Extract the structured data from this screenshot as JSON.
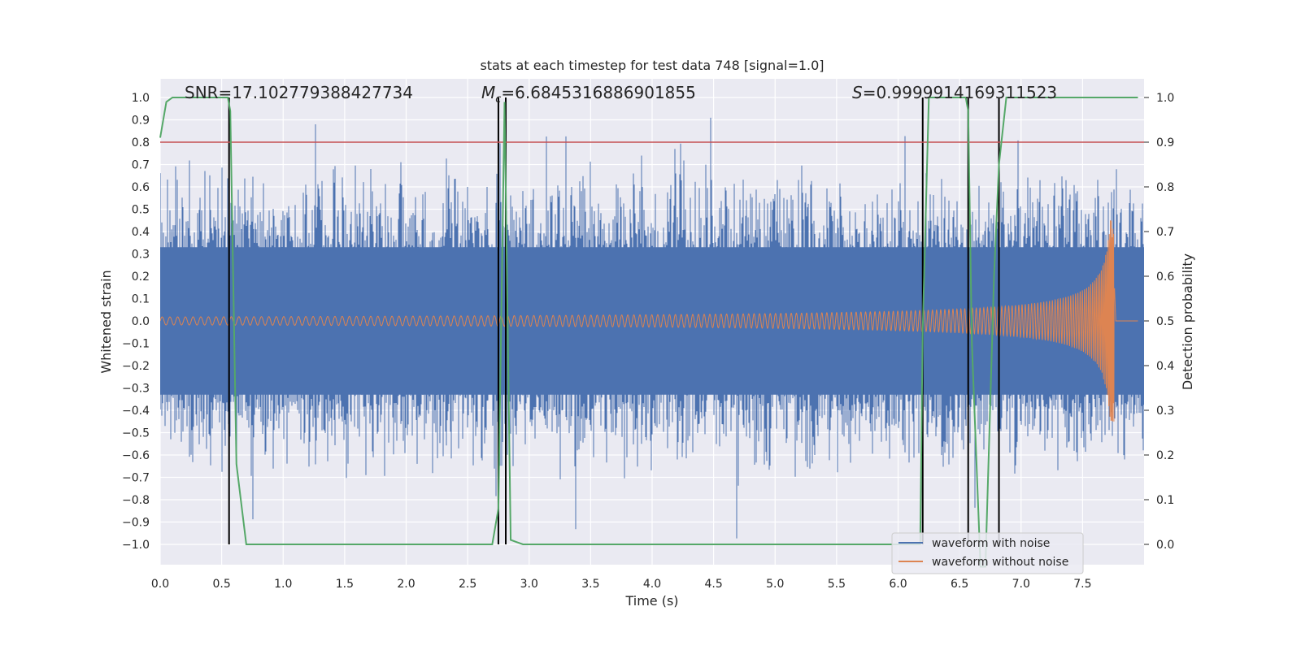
{
  "chart_data": {
    "type": "line",
    "title": "stats at each timestep for test data 748 [signal=1.0]",
    "xlabel": "Time (s)",
    "ylabel_left": "Whitened strain",
    "ylabel_right": "Detection probability",
    "xlim": [
      0.0,
      8.0
    ],
    "ylim_left": [
      -1.1,
      1.1
    ],
    "ylim_right": [
      -0.05,
      1.05
    ],
    "x_ticks": [
      "0.0",
      "0.5",
      "1.0",
      "1.5",
      "2.0",
      "2.5",
      "3.0",
      "3.5",
      "4.0",
      "4.5",
      "5.0",
      "5.5",
      "6.0",
      "6.5",
      "7.0",
      "7.5"
    ],
    "y_ticks_left": [
      "1.0",
      "0.9",
      "0.8",
      "0.7",
      "0.6",
      "0.5",
      "0.4",
      "0.3",
      "0.2",
      "0.1",
      "0.0",
      "−0.1",
      "−0.2",
      "−0.3",
      "−0.4",
      "−0.5",
      "−0.6",
      "−0.7",
      "−0.8",
      "−0.9",
      "−1.0"
    ],
    "y_ticks_right": [
      "1.0",
      "0.9",
      "0.8",
      "0.7",
      "0.6",
      "0.5",
      "0.4",
      "0.3",
      "0.2",
      "0.1",
      "0.0"
    ],
    "annotations": {
      "snr": "SNR=17.102779388427734",
      "mc_symbol": "M",
      "mc_subscript": "c",
      "mc_value": "=6.6845316886901855",
      "s_symbol": "S",
      "s_value": "=0.9999914169311523"
    },
    "threshold": {
      "value_right_axis": 0.9,
      "color": "#c44e52"
    },
    "vertical_markers": [
      0.56,
      2.75,
      2.81,
      6.2,
      6.57,
      6.82
    ],
    "series": [
      {
        "name": "waveform with noise",
        "color": "#4c72b0",
        "description": "noise envelope amplitude approx 0.3-0.4, peaks to 0.95"
      },
      {
        "name": "waveform without noise",
        "color": "#dd8452",
        "description": "chirp amplitude growing from 0.02 to 0.5 at t=7.75 s"
      },
      {
        "name": "detection probability",
        "color": "#55a868",
        "axis": "right",
        "x": [
          0.0,
          0.05,
          0.1,
          0.15,
          0.55,
          0.57,
          0.62,
          0.7,
          2.7,
          2.75,
          2.8,
          2.85,
          2.95,
          6.18,
          6.2,
          6.25,
          6.55,
          6.57,
          6.6,
          6.67,
          6.71,
          6.78,
          6.82,
          6.88,
          7.95
        ],
        "y": [
          0.91,
          0.99,
          1.0,
          1.0,
          1.0,
          0.97,
          0.18,
          0.0,
          0.0,
          0.08,
          0.99,
          0.01,
          0.0,
          0.0,
          0.48,
          1.0,
          1.0,
          0.97,
          0.45,
          -0.05,
          -0.05,
          0.6,
          0.85,
          1.0,
          1.0
        ]
      }
    ],
    "legend": {
      "placement": "lower-right",
      "entries": [
        "waveform with noise",
        "waveform without noise"
      ]
    },
    "colors": {
      "plot_background": "#eaeaf2",
      "grid": "#ffffff",
      "noise": "#4c72b0",
      "clean": "#dd8452",
      "probability": "#55a868",
      "marker": "#000000",
      "threshold": "#c44e52"
    }
  }
}
